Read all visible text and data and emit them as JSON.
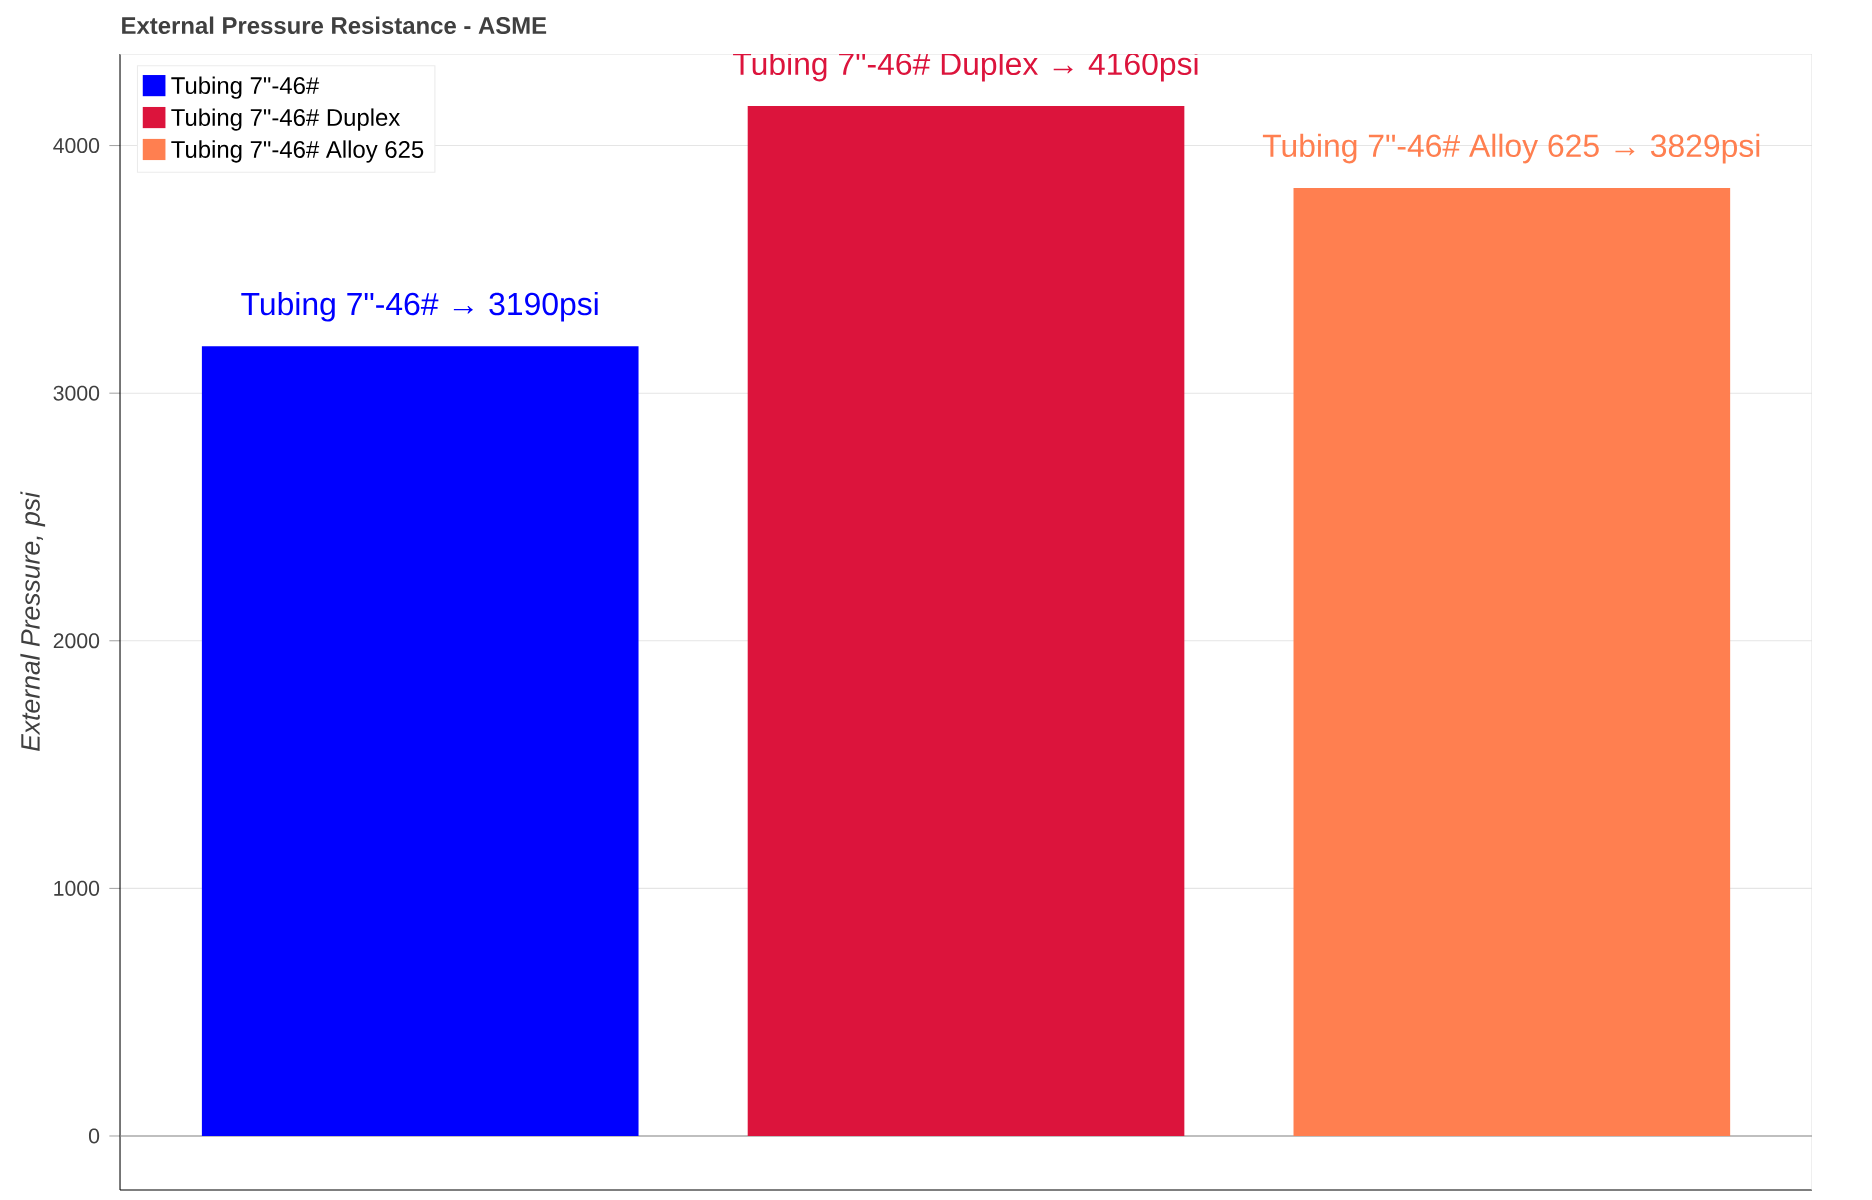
{
  "chart_data": {
    "type": "bar",
    "title": "External Pressure Resistance - ASME",
    "ylabel": "External Pressure, psi",
    "categories": [
      null,
      null,
      null
    ],
    "series": [
      {
        "name": "Tubing 7\"-46#",
        "color": "#0000ff",
        "values": [
          3190,
          null,
          null
        ],
        "value_labels": [
          "Tubing 7\"-46# → 3190psi",
          null,
          null
        ]
      },
      {
        "name": "Tubing 7\"-46# Duplex",
        "color": "#dc143c",
        "values": [
          null,
          4160,
          null
        ],
        "value_labels": [
          null,
          "Tubing 7\"-46# Duplex → 4160psi",
          null
        ]
      },
      {
        "name": "Tubing 7\"-46# Alloy 625",
        "color": "#ff7f50",
        "values": [
          null,
          null,
          3829
        ],
        "value_labels": [
          null,
          null,
          "Tubing 7\"-46# Alloy 625 → 3829psi"
        ]
      }
    ],
    "ylim": [
      -218,
      4370
    ],
    "yticks": [
      0,
      1000,
      2000,
      3000,
      4000
    ],
    "grid": "y",
    "legend": "top left",
    "tick_labels": "y"
  }
}
